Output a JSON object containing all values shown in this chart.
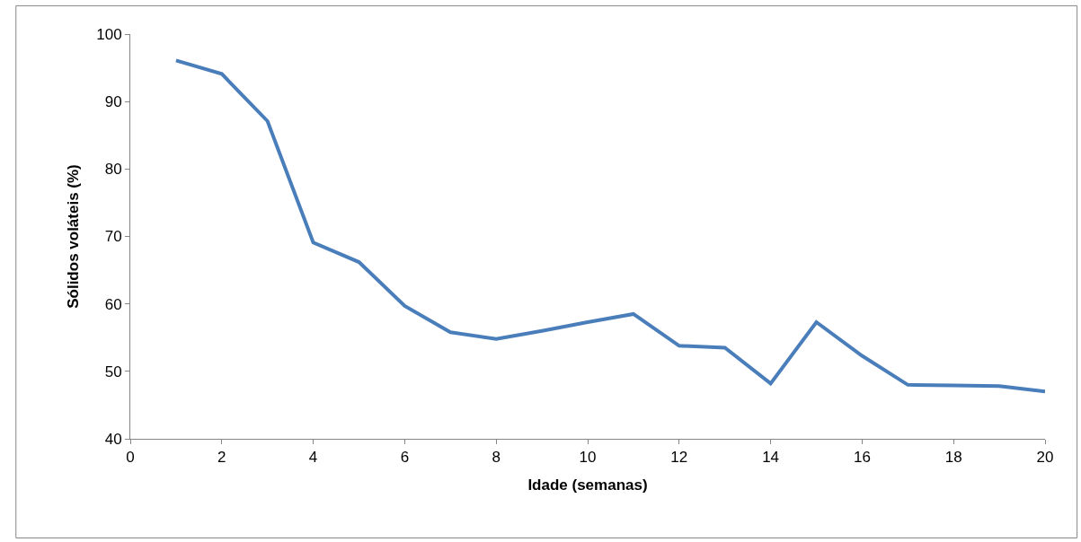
{
  "chart_data": {
    "type": "line",
    "xlabel": "Idade (semanas)",
    "ylabel": "Sólidos voláteis (%)",
    "x": [
      1,
      2,
      3,
      4,
      5,
      6,
      7,
      8,
      9,
      10,
      11,
      12,
      13,
      14,
      15,
      16,
      17,
      18,
      19,
      20
    ],
    "series": [
      {
        "color": "#4a7ebb",
        "values": [
          96.1,
          94.1,
          87.1,
          69.1,
          66.2,
          59.7,
          55.8,
          54.8,
          56.0,
          57.3,
          58.5,
          53.8,
          53.5,
          48.2,
          57.3,
          52.3,
          48.0,
          47.9,
          47.8,
          47.0
        ]
      }
    ],
    "xlim": [
      0,
      20
    ],
    "xticks": [
      0,
      2,
      4,
      6,
      8,
      10,
      12,
      14,
      16,
      18,
      20
    ],
    "ylim": [
      40,
      100
    ],
    "yticks": [
      40,
      50,
      60,
      70,
      80,
      90,
      100
    ],
    "grid": false,
    "legend": false,
    "marker": "none",
    "line_style": "solid"
  }
}
